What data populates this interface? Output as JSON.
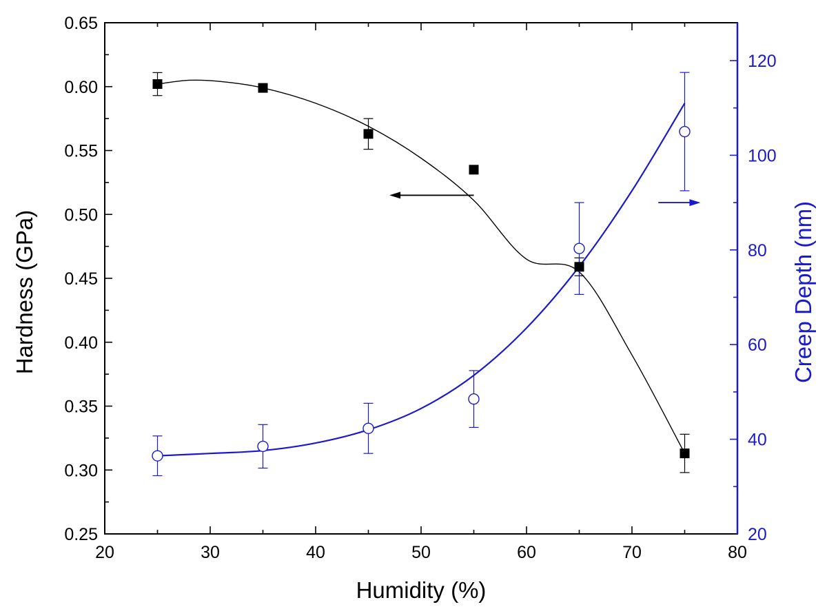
{
  "chart_data": {
    "type": "scatter",
    "xlabel": "Humidity (%)",
    "ylabel_left": "Hardness (GPa)",
    "ylabel_right": "Creep Depth (nm)",
    "xlim": [
      20,
      80
    ],
    "ylim_left": [
      0.25,
      0.65
    ],
    "ylim_right": [
      20,
      128
    ],
    "x_ticks": [
      20,
      30,
      40,
      50,
      60,
      70,
      80
    ],
    "y_left_ticks": [
      "0.25",
      "0.30",
      "0.35",
      "0.40",
      "0.45",
      "0.50",
      "0.55",
      "0.60",
      "0.65"
    ],
    "y_right_ticks": [
      20,
      40,
      60,
      80,
      100,
      120
    ],
    "grid": false,
    "colors": {
      "left_axis": "#000000",
      "right_axis": "#1a1acc"
    },
    "series": [
      {
        "axis": "left",
        "marker": "filled-square",
        "color": "#000000",
        "x": [
          25,
          35,
          45,
          55,
          65,
          75
        ],
        "y": [
          0.602,
          0.599,
          0.563,
          0.535,
          0.459,
          0.313
        ],
        "err": [
          0.009,
          0.002,
          0.012,
          0.003,
          0.007,
          0.015
        ],
        "fit_x": [
          25,
          28,
          31,
          35,
          40,
          45,
          50,
          55,
          60,
          65,
          70,
          75
        ],
        "fit_y": [
          0.602,
          0.605,
          0.604,
          0.599,
          0.587,
          0.569,
          0.544,
          0.511,
          0.465,
          0.455,
          0.39,
          0.313
        ]
      },
      {
        "axis": "right",
        "marker": "open-circle",
        "color": "#1a1acc",
        "x": [
          25,
          35,
          45,
          55,
          65,
          75
        ],
        "y": [
          36.5,
          38.5,
          42.3,
          48.5,
          80.3,
          105
        ],
        "err": [
          4.2,
          4.6,
          5.3,
          6.0,
          9.7,
          12.5
        ],
        "fit_x": [
          25,
          30,
          35,
          40,
          45,
          50,
          55,
          60,
          65,
          70,
          75
        ],
        "fit_y": [
          36.5,
          37,
          37.6,
          39.2,
          42,
          46.5,
          53.5,
          63.5,
          76.5,
          92.5,
          111
        ]
      }
    ],
    "annotations": [
      {
        "type": "arrow",
        "direction": "left",
        "axis": "left",
        "x_from": 55,
        "x_to": 47,
        "y": 0.515
      },
      {
        "type": "arrow",
        "direction": "right",
        "axis": "right",
        "x_from": 72.5,
        "x_to": 76.5,
        "y": 90
      }
    ]
  }
}
